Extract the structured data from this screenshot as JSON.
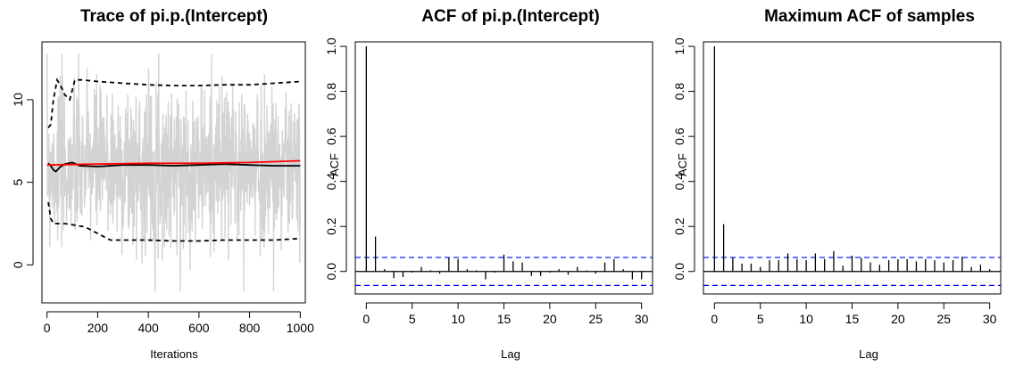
{
  "chart_data": [
    {
      "type": "line",
      "title": "Trace of pi.p.(Intercept)",
      "xlabel": "Iterations",
      "ylabel": "",
      "xlim": [
        -20,
        1020
      ],
      "ylim": [
        -2.3,
        13.5
      ],
      "x_ticks": [
        0,
        200,
        400,
        600,
        800,
        1000
      ],
      "y_ticks": [
        0,
        5,
        10
      ],
      "series": [
        {
          "role": "trace",
          "color": "#d3d3d3",
          "dash": "solid",
          "x": [
            0,
            1000
          ],
          "y": [
            6,
            6
          ]
        },
        {
          "role": "running_mean",
          "color": "#000000",
          "dash": "solid",
          "x": [
            5,
            15,
            25,
            35,
            50,
            70,
            100,
            130,
            200,
            300,
            400,
            500,
            600,
            700,
            800,
            900,
            1000
          ],
          "y": [
            6.15,
            6.0,
            5.75,
            5.65,
            5.9,
            6.1,
            6.2,
            6.0,
            5.95,
            6.05,
            6.05,
            6.0,
            6.05,
            6.1,
            6.05,
            6.0,
            6.0
          ]
        },
        {
          "role": "upper_band",
          "color": "#000000",
          "dash": "dashed",
          "x": [
            5,
            15,
            25,
            40,
            55,
            70,
            90,
            110,
            140,
            200,
            300,
            400,
            500,
            600,
            700,
            800,
            900,
            1000
          ],
          "y": [
            8.3,
            8.5,
            10.0,
            11.2,
            10.8,
            10.3,
            10.0,
            11.2,
            11.2,
            11.1,
            11.0,
            10.9,
            10.85,
            10.85,
            10.9,
            10.9,
            11.0,
            11.1
          ]
        },
        {
          "role": "lower_band",
          "color": "#000000",
          "dash": "dashed",
          "x": [
            5,
            15,
            25,
            40,
            70,
            110,
            150,
            200,
            250,
            300,
            400,
            500,
            600,
            700,
            800,
            900,
            1000
          ],
          "y": [
            3.8,
            2.8,
            2.5,
            2.5,
            2.5,
            2.4,
            2.3,
            1.9,
            1.5,
            1.5,
            1.5,
            1.45,
            1.45,
            1.5,
            1.5,
            1.5,
            1.6
          ]
        },
        {
          "role": "smoothed_trend",
          "color": "#ff0000",
          "dash": "solid",
          "x": [
            0,
            200,
            400,
            600,
            800,
            1000
          ],
          "y": [
            6.05,
            6.1,
            6.15,
            6.15,
            6.2,
            6.3
          ]
        }
      ]
    },
    {
      "type": "bar",
      "title": "ACF of pi.p.(Intercept)",
      "xlabel": "Lag",
      "ylabel": "ACF",
      "xlim": [
        -1.2,
        31.2
      ],
      "ylim": [
        -0.1,
        1.02
      ],
      "x_ticks": [
        0,
        5,
        10,
        15,
        20,
        25,
        30
      ],
      "y_ticks": [
        0.0,
        0.2,
        0.4,
        0.6,
        0.8,
        1.0
      ],
      "conf_bounds": [
        0.062,
        -0.062
      ],
      "lags": [
        0,
        1,
        2,
        3,
        4,
        5,
        6,
        7,
        8,
        9,
        10,
        11,
        12,
        13,
        14,
        15,
        16,
        17,
        18,
        19,
        20,
        21,
        22,
        23,
        24,
        25,
        26,
        27,
        28,
        29,
        30
      ],
      "values": [
        1.0,
        0.155,
        0.01,
        -0.03,
        -0.025,
        -0.005,
        0.02,
        0.005,
        -0.01,
        0.06,
        0.055,
        0.01,
        0.005,
        -0.035,
        -0.005,
        0.075,
        0.045,
        0.04,
        -0.02,
        -0.02,
        -0.005,
        0.01,
        -0.015,
        0.02,
        0.005,
        -0.01,
        0.04,
        0.055,
        0.01,
        -0.035,
        -0.035
      ]
    },
    {
      "type": "bar",
      "title": "Maximum ACF of samples",
      "xlabel": "Lag",
      "ylabel": "ACF",
      "xlim": [
        -1.2,
        31.2
      ],
      "ylim": [
        -0.1,
        1.02
      ],
      "x_ticks": [
        0,
        5,
        10,
        15,
        20,
        25,
        30
      ],
      "y_ticks": [
        0.0,
        0.2,
        0.4,
        0.6,
        0.8,
        1.0
      ],
      "conf_bounds": [
        0.062,
        -0.062
      ],
      "lags": [
        0,
        1,
        2,
        3,
        4,
        5,
        6,
        7,
        8,
        9,
        10,
        11,
        12,
        13,
        14,
        15,
        16,
        17,
        18,
        19,
        20,
        21,
        22,
        23,
        24,
        25,
        26,
        27,
        28,
        29,
        30
      ],
      "values": [
        1.0,
        0.21,
        0.06,
        0.035,
        0.035,
        0.02,
        0.05,
        0.05,
        0.08,
        0.055,
        0.05,
        0.08,
        0.055,
        0.09,
        0.025,
        0.07,
        0.06,
        0.04,
        0.03,
        0.05,
        0.055,
        0.055,
        0.045,
        0.055,
        0.05,
        0.04,
        0.05,
        0.065,
        0.02,
        0.03,
        0.01
      ]
    }
  ]
}
